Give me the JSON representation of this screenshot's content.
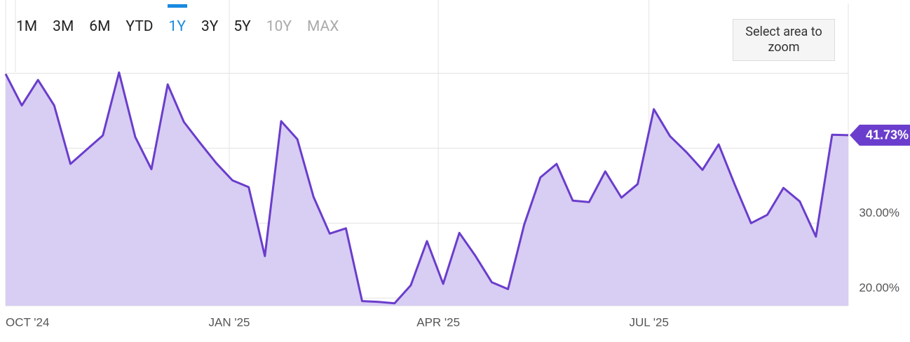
{
  "buttons": [
    {
      "label": "1M",
      "state": "normal"
    },
    {
      "label": "3M",
      "state": "normal"
    },
    {
      "label": "6M",
      "state": "normal"
    },
    {
      "label": "YTD",
      "state": "normal"
    },
    {
      "label": "1Y",
      "state": "active"
    },
    {
      "label": "3Y",
      "state": "normal"
    },
    {
      "label": "5Y",
      "state": "normal"
    },
    {
      "label": "10Y",
      "state": "disabled"
    },
    {
      "label": "MAX",
      "state": "disabled"
    }
  ],
  "zoom_hint": "Select area to zoom",
  "chart_data": {
    "type": "area",
    "color": "#6a3dcc",
    "fill": "#d8cdf2",
    "values": [
      49.9,
      45.7,
      49.1,
      45.7,
      37.9,
      39.8,
      41.7,
      50.1,
      41.5,
      37.2,
      48.5,
      43.5,
      40.7,
      38.0,
      35.7,
      34.8,
      25.6,
      43.6,
      41.2,
      33.5,
      28.6,
      29.3,
      19.6,
      19.5,
      19.3,
      21.7,
      27.6,
      21.9,
      28.7,
      25.6,
      22.1,
      21.2,
      29.8,
      36.1,
      37.9,
      33.0,
      32.8,
      36.9,
      33.4,
      35.2,
      45.2,
      41.6,
      39.5,
      37.1,
      40.5,
      35.1,
      30.0,
      31.1,
      34.7,
      32.9,
      28.2,
      41.8,
      41.73
    ],
    "value_labels": [
      null,
      null,
      null,
      null,
      null,
      null,
      null,
      null,
      null,
      null,
      null,
      null,
      null,
      null,
      null,
      null,
      null,
      null,
      null,
      null,
      null,
      null,
      null,
      null,
      null,
      null,
      null,
      null,
      null,
      null,
      null,
      null,
      null,
      null,
      null,
      null,
      null,
      null,
      null,
      null,
      null,
      null,
      null,
      null,
      null,
      null,
      null,
      null,
      null,
      null,
      null,
      null,
      "41.73%"
    ],
    "xlim": [
      0,
      52
    ],
    "xticks": [
      {
        "value": 0,
        "label": "OCT '24"
      },
      {
        "value": 13.8,
        "label": "JAN '25"
      },
      {
        "value": 26.7,
        "label": "APR '25"
      },
      {
        "value": 39.7,
        "label": "JUL '25"
      }
    ],
    "ylim": [
      19,
      59.3
    ],
    "yticks": [
      {
        "value": 20,
        "label": "20.00%"
      },
      {
        "value": 30,
        "label": "30.00%"
      },
      {
        "value": 40,
        "label": null
      },
      {
        "value": 50,
        "label": null
      }
    ],
    "grid": true
  }
}
